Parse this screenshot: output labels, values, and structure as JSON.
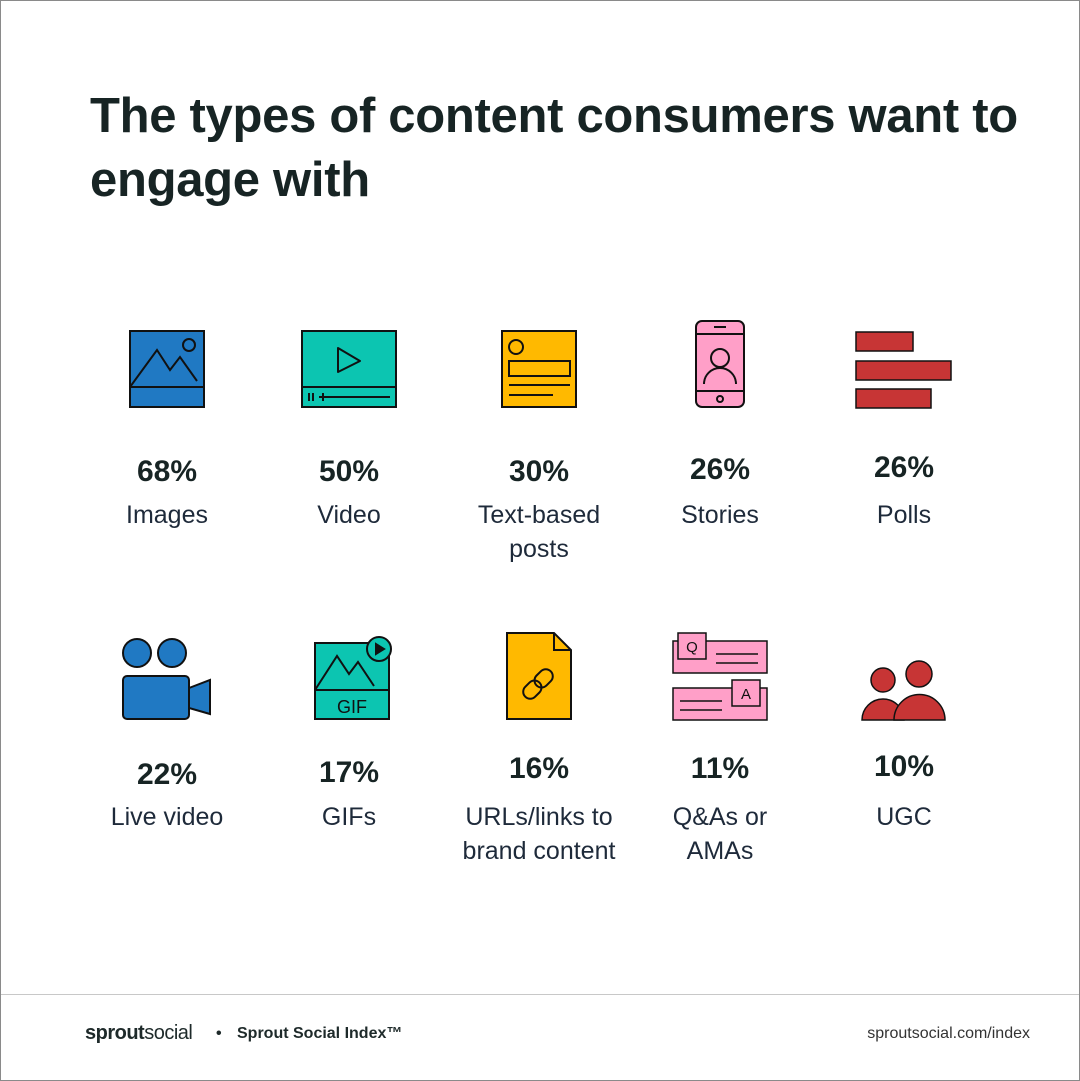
{
  "title": "The types of content consumers want to engage with",
  "colors": {
    "blue": "#2079c3",
    "teal": "#0cc5b1",
    "yellow": "#ffb900",
    "pink": "#ff9fc8",
    "red": "#c73535",
    "text": "#172424"
  },
  "chart_data": {
    "type": "table",
    "title": "The types of content consumers want to engage with",
    "categories": [
      "Images",
      "Video",
      "Text-based posts",
      "Stories",
      "Polls",
      "Live video",
      "GIFs",
      "URLs/links to brand content",
      "Q&As or AMAs",
      "UGC"
    ],
    "values": [
      68,
      50,
      30,
      26,
      26,
      22,
      17,
      16,
      11,
      10
    ],
    "unit": "%"
  },
  "items": [
    {
      "pct": "68%",
      "label": "Images",
      "icon": "image-icon"
    },
    {
      "pct": "50%",
      "label": "Video",
      "icon": "video-player-icon"
    },
    {
      "pct": "30%",
      "label": "Text-based\nposts",
      "icon": "text-post-icon"
    },
    {
      "pct": "26%",
      "label": "Stories",
      "icon": "phone-stories-icon"
    },
    {
      "pct": "26%",
      "label": "Polls",
      "icon": "poll-bars-icon"
    },
    {
      "pct": "22%",
      "label": "Live video",
      "icon": "video-camera-icon"
    },
    {
      "pct": "17%",
      "label": "GIFs",
      "icon": "gif-icon"
    },
    {
      "pct": "16%",
      "label": "URLs/links to\nbrand content",
      "icon": "link-document-icon"
    },
    {
      "pct": "11%",
      "label": "Q&As or\nAMAs",
      "icon": "qa-cards-icon"
    },
    {
      "pct": "10%",
      "label": "UGC",
      "icon": "users-icon"
    }
  ],
  "footer": {
    "brand_bold": "sprout",
    "brand_light": "social",
    "separator": "•",
    "index": "Sprout Social Index™",
    "url": "sproutsocial.com/index"
  }
}
